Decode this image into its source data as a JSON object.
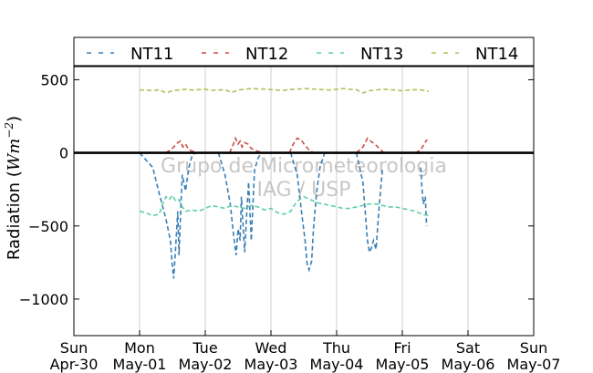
{
  "chart_data": {
    "type": "line",
    "ylabel": "Radiation (Wm⁻²)",
    "ylabel_parts": {
      "main": "Radiation (",
      "italic": "Wm",
      "sup": "−2",
      "close": ")"
    },
    "ylim": [
      -1250,
      590
    ],
    "xlim": [
      "2017-04-30",
      "2017-05-07"
    ],
    "yticks": [
      500,
      0,
      -500,
      -1000
    ],
    "ytick_labels": [
      "500",
      "0",
      "−500",
      "−1000"
    ],
    "xtick_labels": [
      [
        "Sun",
        "Apr-30"
      ],
      [
        "Mon",
        "May-01"
      ],
      [
        "Tue",
        "May-02"
      ],
      [
        "Wed",
        "May-03"
      ],
      [
        "Thu",
        "May-04"
      ],
      [
        "Fri",
        "May-05"
      ],
      [
        "Sat",
        "May-06"
      ],
      [
        "Sun",
        "May-07"
      ]
    ],
    "grid": {
      "x": true,
      "y": false
    },
    "zero_line": true,
    "legend_position": "top",
    "watermark": [
      "Grupo de Micrometeorologia",
      "IAG / USP"
    ],
    "series": [
      {
        "name": "NT11",
        "color": "#3a7fb5",
        "style": "dashed",
        "x_days": [
          1.0,
          1.2,
          1.3,
          1.4,
          1.47,
          1.5,
          1.52,
          1.55,
          1.58,
          1.6,
          1.63,
          1.65,
          1.7,
          1.75,
          1.8,
          1.85,
          null,
          2.2,
          2.3,
          2.38,
          2.43,
          2.47,
          2.5,
          2.53,
          2.55,
          2.6,
          2.63,
          2.66,
          2.7,
          2.75,
          2.8,
          2.85,
          null,
          3.3,
          3.4,
          3.47,
          3.52,
          3.55,
          3.58,
          3.62,
          3.65,
          3.7,
          3.75,
          3.82,
          null,
          4.3,
          4.4,
          4.47,
          4.5,
          4.53,
          4.56,
          4.6,
          4.65,
          4.7,
          null,
          5.28,
          5.3,
          5.32,
          5.35,
          5.37
        ],
        "y": [
          0,
          -100,
          -280,
          -450,
          -600,
          -780,
          -860,
          -640,
          -400,
          -700,
          -350,
          -150,
          -260,
          -100,
          -20,
          0,
          null,
          0,
          -150,
          -350,
          -560,
          -700,
          -520,
          -600,
          -300,
          -680,
          -420,
          -200,
          -600,
          -120,
          -40,
          0,
          null,
          0,
          -150,
          -420,
          -600,
          -760,
          -800,
          -740,
          -500,
          -250,
          -90,
          0,
          null,
          0,
          -200,
          -600,
          -680,
          -650,
          -600,
          -660,
          -350,
          -100,
          null,
          -100,
          -250,
          -350,
          -300,
          -500
        ]
      },
      {
        "name": "NT12",
        "color": "#cc4d4d",
        "style": "dashed",
        "x_days": [
          1.4,
          1.5,
          1.58,
          1.62,
          1.66,
          1.7,
          1.75,
          1.82,
          1.88,
          null,
          2.37,
          2.42,
          2.46,
          2.5,
          2.53,
          2.56,
          2.6,
          2.65,
          2.7,
          2.8,
          2.9,
          null,
          3.28,
          3.34,
          3.4,
          3.46,
          3.52,
          3.58,
          3.65,
          null,
          4.3,
          4.4,
          4.47,
          4.52,
          4.58,
          4.65,
          4.72,
          null,
          5.2,
          5.28,
          5.33,
          5.36,
          5.38
        ],
        "y": [
          0,
          30,
          70,
          80,
          40,
          60,
          20,
          10,
          0,
          null,
          0,
          50,
          100,
          60,
          80,
          40,
          70,
          60,
          30,
          10,
          0,
          null,
          0,
          60,
          100,
          90,
          50,
          20,
          0,
          null,
          0,
          40,
          100,
          80,
          60,
          30,
          0,
          null,
          0,
          20,
          60,
          80,
          90
        ]
      },
      {
        "name": "NT13",
        "color": "#5dcfa8",
        "style": "dashed",
        "x_days": [
          1.0,
          1.1,
          1.2,
          1.3,
          1.35,
          1.4,
          1.45,
          1.5,
          1.55,
          1.6,
          1.65,
          1.7,
          1.8,
          1.9,
          2.0,
          2.1,
          2.2,
          2.3,
          2.4,
          2.5,
          2.6,
          2.7,
          2.8,
          2.9,
          3.0,
          3.1,
          3.2,
          3.3,
          3.4,
          3.5,
          3.6,
          3.7,
          3.8,
          3.9,
          4.0,
          4.1,
          4.2,
          4.3,
          4.4,
          4.5,
          4.6,
          4.7,
          4.8,
          4.9,
          5.0,
          5.1,
          5.2,
          5.3,
          5.4
        ],
        "y": [
          -400,
          -410,
          -430,
          -420,
          -350,
          -300,
          -320,
          -290,
          -330,
          -320,
          -370,
          -400,
          -390,
          -400,
          -380,
          -360,
          -370,
          -380,
          -360,
          -370,
          -380,
          -360,
          -370,
          -390,
          -380,
          -410,
          -420,
          -400,
          -330,
          -300,
          -320,
          -340,
          -350,
          -360,
          -370,
          -380,
          -380,
          -370,
          -360,
          -350,
          -350,
          -360,
          -370,
          -370,
          -380,
          -390,
          -400,
          -420,
          -430
        ]
      },
      {
        "name": "NT14",
        "color": "#b5be5a",
        "style": "dashed",
        "x_days": [
          1.0,
          1.1,
          1.2,
          1.3,
          1.4,
          1.5,
          1.6,
          1.7,
          1.8,
          1.9,
          2.0,
          2.1,
          2.2,
          2.3,
          2.4,
          2.5,
          2.6,
          2.7,
          2.8,
          2.9,
          3.0,
          3.1,
          3.2,
          3.3,
          3.4,
          3.5,
          3.6,
          3.7,
          3.8,
          3.9,
          4.0,
          4.1,
          4.2,
          4.3,
          4.4,
          4.5,
          4.6,
          4.7,
          4.8,
          4.9,
          5.0,
          5.1,
          5.2,
          5.3,
          5.4
        ],
        "y": [
          430,
          430,
          425,
          432,
          410,
          425,
          430,
          435,
          430,
          432,
          435,
          428,
          430,
          432,
          412,
          430,
          435,
          440,
          438,
          436,
          432,
          430,
          428,
          435,
          435,
          440,
          438,
          435,
          432,
          430,
          435,
          440,
          435,
          432,
          410,
          425,
          430,
          435,
          432,
          430,
          425,
          430,
          432,
          430,
          420
        ]
      }
    ]
  }
}
